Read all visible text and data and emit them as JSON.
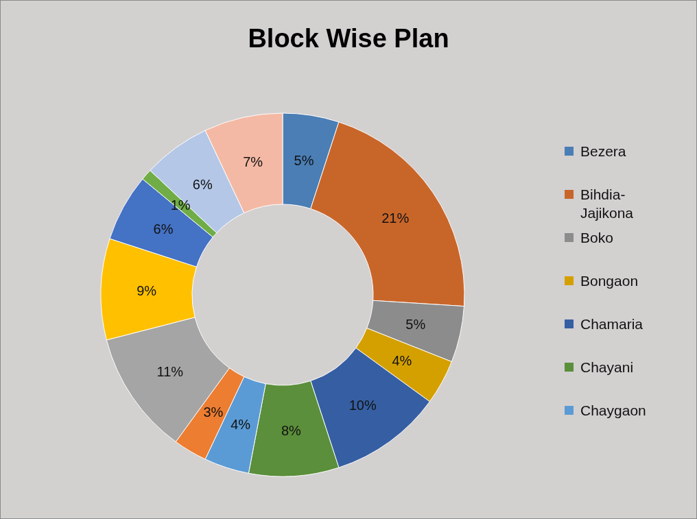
{
  "chart_data": {
    "type": "donut",
    "title": "Block Wise Plan",
    "categories": [
      "Bezera",
      "Bihdia-Jajikona",
      "Boko",
      "Bongaon",
      "Chamaria",
      "Chayani",
      "Chaygaon",
      null,
      null,
      null,
      null,
      null,
      null,
      null
    ],
    "values": [
      5,
      21,
      5,
      4,
      10,
      8,
      4,
      3,
      11,
      9,
      6,
      1,
      6,
      7
    ],
    "value_labels": [
      "5%",
      "21%",
      "5%",
      "4%",
      "10%",
      "8%",
      "4%",
      "3%",
      "11%",
      "9%",
      "6%",
      "1%",
      "6%",
      "7%"
    ],
    "colors": [
      "#4a7eb5",
      "#c8662a",
      "#8c8c8c",
      "#d4a000",
      "#365fa3",
      "#5b8f3b",
      "#5b9bd5",
      "#ed7d31",
      "#a5a5a5",
      "#ffc000",
      "#4472c4",
      "#70ad47",
      "#b4c7e7",
      "#f4b9a4"
    ],
    "legend": "right"
  }
}
